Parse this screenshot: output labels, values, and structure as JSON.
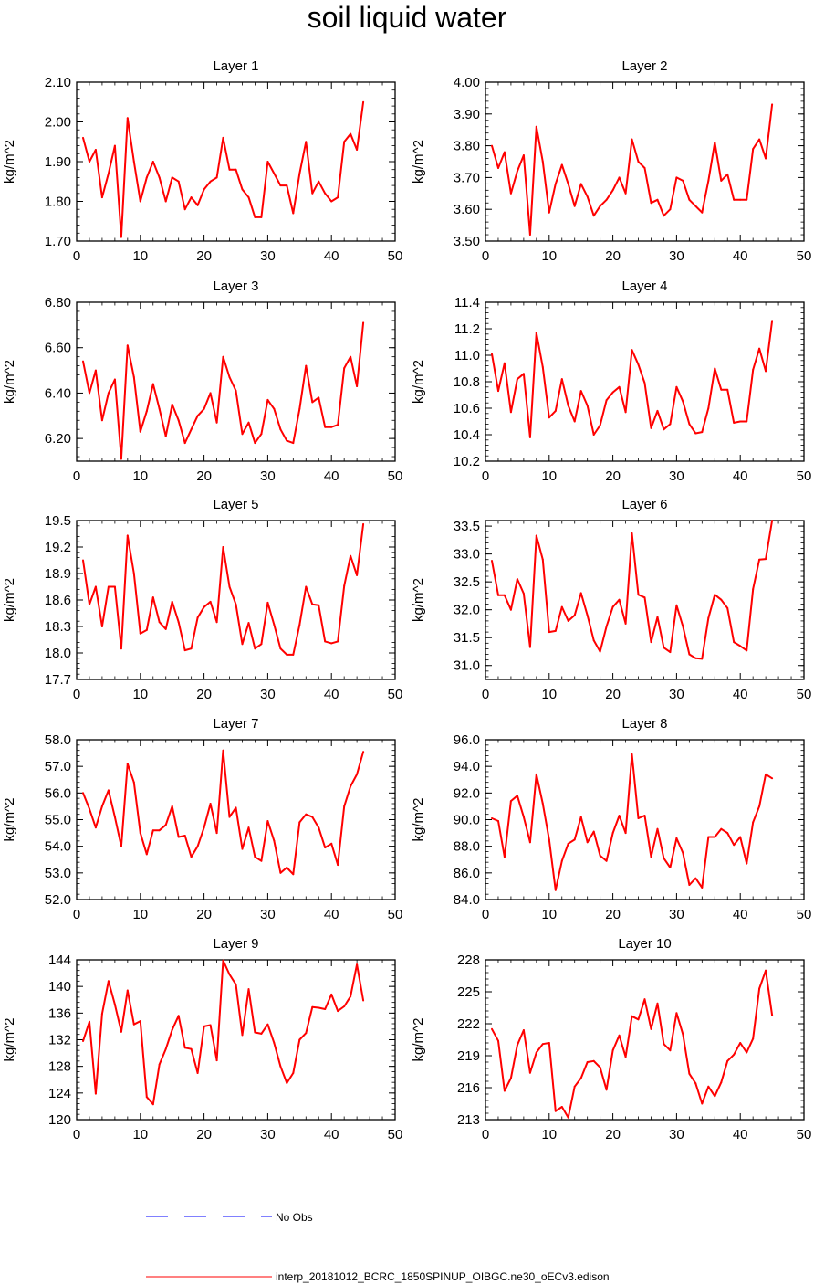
{
  "title": "soil liquid water",
  "colors": {
    "series": "#ff0000",
    "no_obs": "#0000ff",
    "axis": "#000000"
  },
  "legend": [
    {
      "label": "No Obs",
      "color": "#0000ff",
      "dash": true
    },
    {
      "label": "interp_20181012_BCRC_1850SPINUP_OIBGC.ne30_oECv3.edison",
      "color": "#ff0000",
      "dash": false
    }
  ],
  "chart_data": [
    {
      "type": "line",
      "title": "Layer 1",
      "ylabel": "kg/m^2",
      "xlim": [
        0,
        50
      ],
      "ylim": [
        1.7,
        2.1
      ],
      "x_ticks": [
        "0",
        "10",
        "20",
        "30",
        "40",
        "50"
      ],
      "y_ticks": [
        "1.70",
        "1.80",
        "1.90",
        "2.00",
        "2.10"
      ],
      "x": [
        1,
        2,
        3,
        4,
        5,
        6,
        7,
        8,
        9,
        10,
        11,
        12,
        13,
        14,
        15,
        16,
        17,
        18,
        19,
        20,
        21,
        22,
        23,
        24,
        25,
        26,
        27,
        28,
        29,
        30,
        31,
        32,
        33,
        34,
        35,
        36,
        37,
        38,
        39,
        40,
        41,
        42,
        43,
        44,
        45
      ],
      "series": [
        {
          "values": [
            1.96,
            1.9,
            1.93,
            1.81,
            1.87,
            1.94,
            1.71,
            2.01,
            1.9,
            1.8,
            1.86,
            1.9,
            1.86,
            1.8,
            1.86,
            1.85,
            1.78,
            1.81,
            1.79,
            1.83,
            1.85,
            1.86,
            1.96,
            1.88,
            1.88,
            1.83,
            1.81,
            1.76,
            1.76,
            1.9,
            1.87,
            1.84,
            1.84,
            1.77,
            1.87,
            1.95,
            1.82,
            1.85,
            1.82,
            1.8,
            1.81,
            1.95,
            1.97,
            1.93,
            2.05
          ]
        }
      ]
    },
    {
      "type": "line",
      "title": "Layer 2",
      "ylabel": "kg/m^2",
      "xlim": [
        0,
        50
      ],
      "ylim": [
        3.5,
        4.0
      ],
      "x_ticks": [
        "0",
        "10",
        "20",
        "30",
        "40",
        "50"
      ],
      "y_ticks": [
        "3.50",
        "3.60",
        "3.70",
        "3.80",
        "3.90",
        "4.00"
      ],
      "x": [
        1,
        2,
        3,
        4,
        5,
        6,
        7,
        8,
        9,
        10,
        11,
        12,
        13,
        14,
        15,
        16,
        17,
        18,
        19,
        20,
        21,
        22,
        23,
        24,
        25,
        26,
        27,
        28,
        29,
        30,
        31,
        32,
        33,
        34,
        35,
        36,
        37,
        38,
        39,
        40,
        41,
        42,
        43,
        44,
        45
      ],
      "series": [
        {
          "values": [
            3.8,
            3.73,
            3.78,
            3.65,
            3.72,
            3.77,
            3.52,
            3.86,
            3.75,
            3.59,
            3.68,
            3.74,
            3.68,
            3.61,
            3.68,
            3.64,
            3.58,
            3.61,
            3.63,
            3.66,
            3.7,
            3.65,
            3.82,
            3.75,
            3.73,
            3.62,
            3.63,
            3.58,
            3.6,
            3.7,
            3.69,
            3.63,
            3.61,
            3.59,
            3.69,
            3.81,
            3.69,
            3.71,
            3.63,
            3.63,
            3.63,
            3.79,
            3.82,
            3.76,
            3.93
          ]
        }
      ]
    },
    {
      "type": "line",
      "title": "Layer 3",
      "ylabel": "kg/m^2",
      "xlim": [
        0,
        50
      ],
      "ylim": [
        6.1,
        6.8
      ],
      "x_ticks": [
        "0",
        "10",
        "20",
        "30",
        "40",
        "50"
      ],
      "y_ticks": [
        "6.20",
        "6.40",
        "6.60",
        "6.80"
      ],
      "x": [
        1,
        2,
        3,
        4,
        5,
        6,
        7,
        8,
        9,
        10,
        11,
        12,
        13,
        14,
        15,
        16,
        17,
        18,
        19,
        20,
        21,
        22,
        23,
        24,
        25,
        26,
        27,
        28,
        29,
        30,
        31,
        32,
        33,
        34,
        35,
        36,
        37,
        38,
        39,
        40,
        41,
        42,
        43,
        44,
        45
      ],
      "series": [
        {
          "values": [
            6.54,
            6.4,
            6.5,
            6.28,
            6.4,
            6.46,
            6.11,
            6.61,
            6.47,
            6.23,
            6.32,
            6.44,
            6.33,
            6.21,
            6.35,
            6.28,
            6.18,
            6.24,
            6.3,
            6.33,
            6.4,
            6.27,
            6.56,
            6.47,
            6.41,
            6.22,
            6.27,
            6.18,
            6.22,
            6.37,
            6.33,
            6.24,
            6.19,
            6.18,
            6.33,
            6.52,
            6.36,
            6.38,
            6.25,
            6.25,
            6.26,
            6.51,
            6.56,
            6.43,
            6.71
          ]
        }
      ]
    },
    {
      "type": "line",
      "title": "Layer 4",
      "ylabel": "kg/m^2",
      "xlim": [
        0,
        50
      ],
      "ylim": [
        10.2,
        11.4
      ],
      "x_ticks": [
        "0",
        "10",
        "20",
        "30",
        "40",
        "50"
      ],
      "y_ticks": [
        "10.2",
        "10.4",
        "10.6",
        "10.8",
        "11.0",
        "11.2",
        "11.4"
      ],
      "x": [
        1,
        2,
        3,
        4,
        5,
        6,
        7,
        8,
        9,
        10,
        11,
        12,
        13,
        14,
        15,
        16,
        17,
        18,
        19,
        20,
        21,
        22,
        23,
        24,
        25,
        26,
        27,
        28,
        29,
        30,
        31,
        32,
        33,
        34,
        35,
        36,
        37,
        38,
        39,
        40,
        41,
        42,
        43,
        44,
        45
      ],
      "series": [
        {
          "values": [
            11.01,
            10.73,
            10.94,
            10.57,
            10.82,
            10.86,
            10.38,
            11.17,
            10.91,
            10.53,
            10.58,
            10.82,
            10.62,
            10.5,
            10.73,
            10.62,
            10.4,
            10.47,
            10.66,
            10.72,
            10.76,
            10.57,
            11.04,
            10.93,
            10.79,
            10.45,
            10.58,
            10.44,
            10.48,
            10.76,
            10.65,
            10.48,
            10.41,
            10.42,
            10.6,
            10.9,
            10.74,
            10.74,
            10.49,
            10.5,
            10.5,
            10.89,
            11.05,
            10.88,
            11.26
          ]
        }
      ]
    },
    {
      "type": "line",
      "title": "Layer 5",
      "ylabel": "kg/m^2",
      "xlim": [
        0,
        50
      ],
      "ylim": [
        17.7,
        19.5
      ],
      "x_ticks": [
        "0",
        "10",
        "20",
        "30",
        "40",
        "50"
      ],
      "y_ticks": [
        "17.7",
        "18.0",
        "18.3",
        "18.6",
        "18.9",
        "19.2",
        "19.5"
      ],
      "x": [
        1,
        2,
        3,
        4,
        5,
        6,
        7,
        8,
        9,
        10,
        11,
        12,
        13,
        14,
        15,
        16,
        17,
        18,
        19,
        20,
        21,
        22,
        23,
        24,
        25,
        26,
        27,
        28,
        29,
        30,
        31,
        32,
        33,
        34,
        35,
        36,
        37,
        38,
        39,
        40,
        41,
        42,
        43,
        44,
        45
      ],
      "series": [
        {
          "values": [
            19.05,
            18.55,
            18.75,
            18.3,
            18.75,
            18.75,
            18.05,
            19.33,
            18.9,
            18.22,
            18.26,
            18.63,
            18.35,
            18.27,
            18.58,
            18.35,
            18.03,
            18.05,
            18.4,
            18.52,
            18.58,
            18.35,
            19.2,
            18.75,
            18.55,
            18.1,
            18.34,
            18.05,
            18.1,
            18.57,
            18.32,
            18.05,
            17.98,
            17.98,
            18.32,
            18.75,
            18.55,
            18.54,
            18.13,
            18.11,
            18.13,
            18.76,
            19.1,
            18.88,
            19.46
          ]
        }
      ]
    },
    {
      "type": "line",
      "title": "Layer 6",
      "ylabel": "kg/m^2",
      "xlim": [
        0,
        50
      ],
      "ylim": [
        30.75,
        33.6
      ],
      "x_ticks": [
        "0",
        "10",
        "20",
        "30",
        "40",
        "50"
      ],
      "y_ticks": [
        "31.0",
        "31.5",
        "32.0",
        "32.5",
        "33.0",
        "33.5"
      ],
      "x": [
        1,
        2,
        3,
        4,
        5,
        6,
        7,
        8,
        9,
        10,
        11,
        12,
        13,
        14,
        15,
        16,
        17,
        18,
        19,
        20,
        21,
        22,
        23,
        24,
        25,
        26,
        27,
        28,
        29,
        30,
        31,
        32,
        33,
        34,
        35,
        36,
        37,
        38,
        39,
        40,
        41,
        42,
        43,
        44,
        45
      ],
      "series": [
        {
          "values": [
            32.88,
            32.26,
            32.26,
            32.0,
            32.55,
            32.29,
            31.33,
            33.33,
            32.9,
            31.6,
            31.62,
            32.05,
            31.8,
            31.9,
            32.3,
            31.9,
            31.45,
            31.25,
            31.7,
            32.05,
            32.18,
            31.75,
            33.37,
            32.27,
            32.22,
            31.42,
            31.87,
            31.32,
            31.24,
            32.08,
            31.7,
            31.2,
            31.13,
            31.12,
            31.85,
            32.27,
            32.18,
            32.03,
            31.42,
            31.35,
            31.27,
            32.37,
            32.9,
            32.91,
            33.6
          ]
        }
      ]
    },
    {
      "type": "line",
      "title": "Layer 7",
      "ylabel": "kg/m^2",
      "xlim": [
        0,
        50
      ],
      "ylim": [
        52.0,
        58.0
      ],
      "x_ticks": [
        "0",
        "10",
        "20",
        "30",
        "40",
        "50"
      ],
      "y_ticks": [
        "52.0",
        "53.0",
        "54.0",
        "55.0",
        "56.0",
        "57.0",
        "58.0"
      ],
      "x": [
        1,
        2,
        3,
        4,
        5,
        6,
        7,
        8,
        9,
        10,
        11,
        12,
        13,
        14,
        15,
        16,
        17,
        18,
        19,
        20,
        21,
        22,
        23,
        24,
        25,
        26,
        27,
        28,
        29,
        30,
        31,
        32,
        33,
        34,
        35,
        36,
        37,
        38,
        39,
        40,
        41,
        42,
        43,
        44,
        45
      ],
      "series": [
        {
          "values": [
            56.0,
            55.4,
            54.7,
            55.5,
            56.1,
            55.1,
            54.0,
            57.1,
            56.4,
            54.5,
            53.7,
            54.6,
            54.6,
            54.8,
            55.5,
            54.35,
            54.4,
            53.6,
            54.0,
            54.7,
            55.6,
            54.5,
            57.6,
            55.1,
            55.45,
            53.9,
            54.7,
            53.6,
            53.45,
            54.95,
            54.2,
            53.0,
            53.2,
            52.95,
            54.9,
            55.2,
            55.1,
            54.7,
            53.95,
            54.1,
            53.3,
            55.5,
            56.25,
            56.7,
            57.55
          ]
        }
      ]
    },
    {
      "type": "line",
      "title": "Layer 8",
      "ylabel": "kg/m^2",
      "xlim": [
        0,
        50
      ],
      "ylim": [
        84.0,
        96.0
      ],
      "x_ticks": [
        "0",
        "10",
        "20",
        "30",
        "40",
        "50"
      ],
      "y_ticks": [
        "84.0",
        "86.0",
        "88.0",
        "90.0",
        "92.0",
        "94.0",
        "96.0"
      ],
      "x": [
        1,
        2,
        3,
        4,
        5,
        6,
        7,
        8,
        9,
        10,
        11,
        12,
        13,
        14,
        15,
        16,
        17,
        18,
        19,
        20,
        21,
        22,
        23,
        24,
        25,
        26,
        27,
        28,
        29,
        30,
        31,
        32,
        33,
        34,
        35,
        36,
        37,
        38,
        39,
        40,
        41,
        42,
        43,
        44,
        45
      ],
      "series": [
        {
          "values": [
            90.1,
            89.9,
            87.2,
            91.4,
            91.8,
            90.2,
            88.3,
            93.4,
            91.2,
            88.5,
            84.7,
            86.9,
            88.2,
            88.5,
            90.2,
            88.3,
            89.1,
            87.3,
            86.9,
            89.0,
            90.3,
            89.0,
            94.9,
            90.1,
            90.3,
            87.2,
            89.3,
            87.1,
            86.4,
            88.6,
            87.5,
            85.1,
            85.6,
            84.9,
            88.7,
            88.7,
            89.3,
            89.0,
            88.1,
            88.7,
            86.7,
            89.8,
            91.0,
            93.4,
            93.1
          ]
        }
      ]
    },
    {
      "type": "line",
      "title": "Layer 9",
      "ylabel": "kg/m^2",
      "xlim": [
        0,
        50
      ],
      "ylim": [
        120,
        144
      ],
      "x_ticks": [
        "0",
        "10",
        "20",
        "30",
        "40",
        "50"
      ],
      "y_ticks": [
        "120",
        "124",
        "128",
        "132",
        "136",
        "140",
        "144"
      ],
      "x": [
        1,
        2,
        3,
        4,
        5,
        6,
        7,
        8,
        9,
        10,
        11,
        12,
        13,
        14,
        15,
        16,
        17,
        18,
        19,
        20,
        21,
        22,
        23,
        24,
        25,
        26,
        27,
        28,
        29,
        30,
        31,
        32,
        33,
        34,
        35,
        36,
        37,
        38,
        39,
        40,
        41,
        42,
        43,
        44,
        45
      ],
      "series": [
        {
          "values": [
            131.8,
            134.7,
            123.9,
            135.9,
            140.8,
            137.3,
            133.2,
            139.4,
            134.3,
            134.8,
            123.4,
            122.3,
            128.3,
            130.6,
            133.5,
            135.6,
            130.8,
            130.6,
            127.0,
            134.0,
            134.2,
            128.9,
            143.9,
            141.8,
            140.3,
            132.7,
            139.6,
            133.1,
            132.9,
            134.3,
            131.5,
            128.0,
            125.5,
            127.0,
            132.0,
            133.0,
            136.9,
            136.8,
            136.6,
            138.8,
            136.3,
            137.0,
            138.5,
            143.3,
            137.9
          ]
        }
      ]
    },
    {
      "type": "line",
      "title": "Layer 10",
      "ylabel": "kg/m^2",
      "xlim": [
        0,
        50
      ],
      "ylim": [
        213,
        228
      ],
      "x_ticks": [
        "0",
        "10",
        "20",
        "30",
        "40",
        "50"
      ],
      "y_ticks": [
        "213",
        "216",
        "219",
        "222",
        "225",
        "228"
      ],
      "x": [
        1,
        2,
        3,
        4,
        5,
        6,
        7,
        8,
        9,
        10,
        11,
        12,
        13,
        14,
        15,
        16,
        17,
        18,
        19,
        20,
        21,
        22,
        23,
        24,
        25,
        26,
        27,
        28,
        29,
        30,
        31,
        32,
        33,
        34,
        35,
        36,
        37,
        38,
        39,
        40,
        41,
        42,
        43,
        44,
        45
      ],
      "series": [
        {
          "values": [
            221.5,
            220.4,
            215.7,
            216.9,
            220.0,
            221.4,
            217.4,
            219.3,
            220.1,
            220.2,
            213.8,
            214.2,
            213.2,
            216.1,
            216.9,
            218.4,
            218.5,
            217.9,
            215.8,
            219.5,
            220.9,
            218.9,
            222.7,
            222.4,
            224.3,
            221.5,
            223.9,
            220.1,
            219.5,
            223.0,
            221.0,
            217.3,
            216.4,
            214.5,
            216.1,
            215.2,
            216.5,
            218.5,
            219.1,
            220.2,
            219.3,
            220.6,
            225.3,
            227.0,
            222.8
          ]
        }
      ]
    }
  ]
}
